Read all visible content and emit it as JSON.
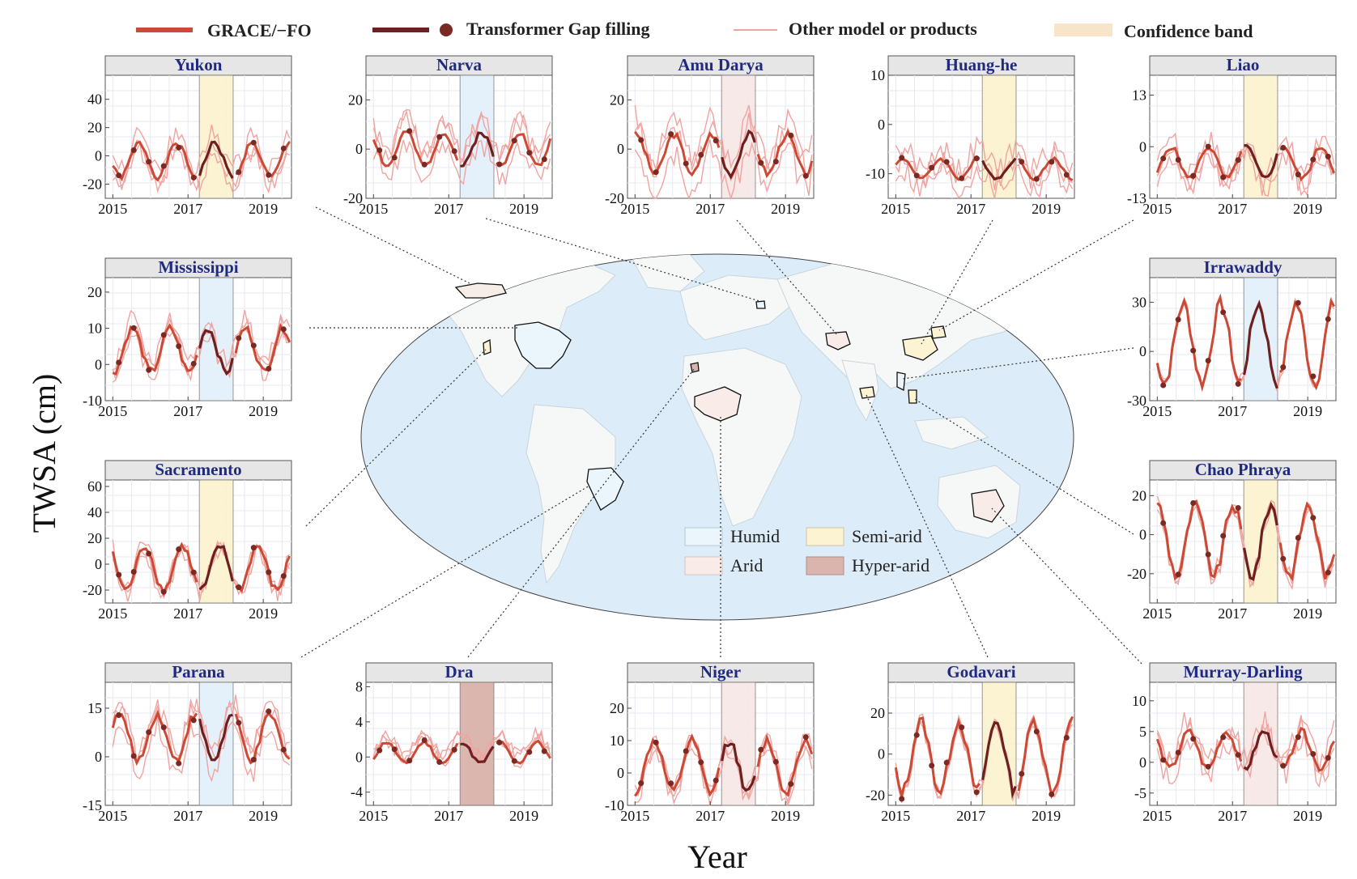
{
  "legend": {
    "grace": {
      "label": "GRACE/−FO",
      "color": "#cc4a35"
    },
    "transformer": {
      "label": "Transformer Gap filling",
      "color": "#6e1f1f"
    },
    "other": {
      "label": "Other model or products",
      "color": "#f0a4a0"
    },
    "band": {
      "label": "Confidence band",
      "color": "#f8e4c8"
    }
  },
  "axes": {
    "ylabel": "TWSA (cm)",
    "xlabel": "Year"
  },
  "climate_legend": [
    {
      "label": "Humid",
      "color": "#eaf6fb"
    },
    {
      "label": "Semi-arid",
      "color": "#fbf3d2"
    },
    {
      "label": "Arid",
      "color": "#f8ebe8"
    },
    {
      "label": "Hyper-arid",
      "color": "#d9b5ae"
    }
  ],
  "climate_band_colors": {
    "Humid": "#e3f1fb",
    "Semi-arid": "#fbf3cf",
    "Arid": "#f7e8e6",
    "Hyper-arid": "#d9b3ab"
  },
  "chart_data": [
    {
      "type": "line",
      "title": "Yukon",
      "climate": "Semi-arid",
      "xticks": [
        "2015",
        "2017",
        "2019"
      ],
      "yticks": [
        40,
        20,
        0,
        -20
      ],
      "ylim": [
        -30,
        57
      ],
      "amp": 12,
      "offset": -3,
      "other_spread": 14,
      "seed": 1,
      "gap": [
        2017.3,
        2018.2
      ]
    },
    {
      "type": "line",
      "title": "Narva",
      "climate": "Humid",
      "xticks": [
        "2015",
        "2017",
        "2019"
      ],
      "yticks": [
        20,
        0,
        -20
      ],
      "ylim": [
        -20,
        30
      ],
      "amp": 7,
      "offset": 0,
      "other_spread": 8,
      "seed": 2,
      "gap": [
        2017.3,
        2018.2
      ]
    },
    {
      "type": "line",
      "title": "Amu Darya",
      "climate": "Arid",
      "xticks": [
        "2015",
        "2017",
        "2019"
      ],
      "yticks": [
        20,
        0,
        -20
      ],
      "ylim": [
        -20,
        30
      ],
      "amp": 8,
      "offset": -2,
      "other_spread": 10,
      "seed": 3,
      "gap": [
        2017.3,
        2018.2
      ]
    },
    {
      "type": "line",
      "title": "Huang-he",
      "climate": "Semi-arid",
      "xticks": [
        "2015",
        "2017",
        "2019"
      ],
      "yticks": [
        10,
        0,
        -10
      ],
      "ylim": [
        -15,
        10
      ],
      "amp": 2,
      "offset": -9,
      "other_spread": 5,
      "seed": 4,
      "gap": [
        2017.3,
        2018.2
      ]
    },
    {
      "type": "line",
      "title": "Liao",
      "climate": "Semi-arid",
      "xticks": [
        "2015",
        "2017",
        "2019"
      ],
      "yticks": [
        13,
        0,
        -13
      ],
      "ylim": [
        -13,
        18
      ],
      "amp": 4,
      "offset": -4,
      "other_spread": 6,
      "seed": 5,
      "gap": [
        2017.3,
        2018.2
      ]
    },
    {
      "type": "line",
      "title": "Mississippi",
      "climate": "Humid",
      "xticks": [
        "2015",
        "2017",
        "2019"
      ],
      "yticks": [
        20,
        10,
        0,
        -10
      ],
      "ylim": [
        -10,
        24
      ],
      "amp": 6,
      "offset": 4,
      "other_spread": 5,
      "seed": 6,
      "gap": [
        2017.3,
        2018.2
      ]
    },
    {
      "type": "line",
      "title": "Irrawaddy",
      "climate": "Humid",
      "xticks": [
        "2015",
        "2017",
        "2019"
      ],
      "yticks": [
        30,
        0,
        -30
      ],
      "ylim": [
        -30,
        45
      ],
      "amp": 24,
      "offset": 5,
      "other_spread": 5,
      "seed": 7,
      "gap": [
        2017.3,
        2018.2
      ]
    },
    {
      "type": "line",
      "title": "Sacramento",
      "climate": "Semi-arid",
      "xticks": [
        "2015",
        "2017",
        "2019"
      ],
      "yticks": [
        60,
        40,
        20,
        0,
        -20
      ],
      "ylim": [
        -30,
        65
      ],
      "amp": 17,
      "offset": -3,
      "other_spread": 15,
      "seed": 8,
      "gap": [
        2017.3,
        2018.2
      ]
    },
    {
      "type": "line",
      "title": "Chao Phraya",
      "climate": "Semi-arid",
      "xticks": [
        "2015",
        "2017",
        "2019"
      ],
      "yticks": [
        20,
        0,
        -20
      ],
      "ylim": [
        -35,
        28
      ],
      "amp": 18,
      "offset": -3,
      "other_spread": 5,
      "seed": 9,
      "gap": [
        2017.3,
        2018.2
      ]
    },
    {
      "type": "line",
      "title": "Parana",
      "climate": "Humid",
      "xticks": [
        "2015",
        "2017",
        "2019"
      ],
      "yticks": [
        15,
        0,
        -15
      ],
      "ylim": [
        -15,
        23
      ],
      "amp": 7,
      "offset": 6,
      "other_spread": 6,
      "seed": 10,
      "gap": [
        2017.3,
        2018.2
      ]
    },
    {
      "type": "line",
      "title": "Dra",
      "climate": "Hyper-arid",
      "xticks": [
        "2015",
        "2017",
        "2019"
      ],
      "yticks": [
        8,
        4,
        0,
        -4
      ],
      "ylim": [
        -5.5,
        8.5
      ],
      "amp": 1.2,
      "offset": 0.5,
      "other_spread": 1.5,
      "seed": 11,
      "gap": [
        2017.3,
        2018.2
      ]
    },
    {
      "type": "line",
      "title": "Niger",
      "climate": "Arid",
      "xticks": [
        "2015",
        "2017",
        "2019"
      ],
      "yticks": [
        20,
        10,
        0,
        -10
      ],
      "ylim": [
        -10,
        28
      ],
      "amp": 8,
      "offset": 2,
      "other_spread": 4,
      "seed": 12,
      "gap": [
        2017.3,
        2018.2
      ]
    },
    {
      "type": "line",
      "title": "Godavari",
      "climate": "Semi-arid",
      "xticks": [
        "2015",
        "2017",
        "2019"
      ],
      "yticks": [
        20,
        0,
        -20
      ],
      "ylim": [
        -25,
        35
      ],
      "amp": 17,
      "offset": -1,
      "other_spread": 4,
      "seed": 13,
      "gap": [
        2017.3,
        2018.2
      ]
    },
    {
      "type": "line",
      "title": "Murray-Darling",
      "climate": "Arid",
      "xticks": [
        "2015",
        "2017",
        "2019"
      ],
      "yticks": [
        10,
        5,
        0,
        -5
      ],
      "ylim": [
        -7,
        13
      ],
      "amp": 3,
      "offset": 2,
      "other_spread": 4,
      "seed": 14,
      "gap": [
        2017.3,
        2018.2
      ]
    }
  ]
}
